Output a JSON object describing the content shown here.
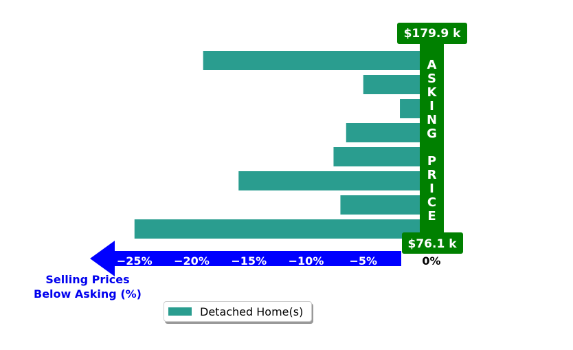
{
  "chart_data": {
    "type": "bar",
    "orientation": "horizontal",
    "series": [
      {
        "name": "Detached Home(s)",
        "color": "#2a9d8f",
        "values": [
          -19.0,
          -5.0,
          -1.8,
          -6.5,
          -7.6,
          -15.9,
          -7.0,
          -25.0
        ]
      }
    ],
    "xlim": [
      -27,
      0
    ],
    "x_ticks": [
      -25,
      -20,
      -15,
      -10,
      -5,
      0
    ],
    "x_tick_labels": [
      "−25%",
      "−20%",
      "−15%",
      "−10%",
      "−5%",
      "0%"
    ],
    "top_price_label": "$179.9 k",
    "bottom_price_label": "$76.1 k",
    "asking_label_top": "ASKING",
    "asking_label_bottom": "PRICE",
    "axis_caption_line1": "Selling Prices",
    "axis_caption_line2": "Below Asking (%)",
    "legend_position": "bottom-center",
    "colors": {
      "asking_bar": "#008000",
      "arrow": "#0000ff",
      "axis_caption": "#0000ee"
    }
  }
}
